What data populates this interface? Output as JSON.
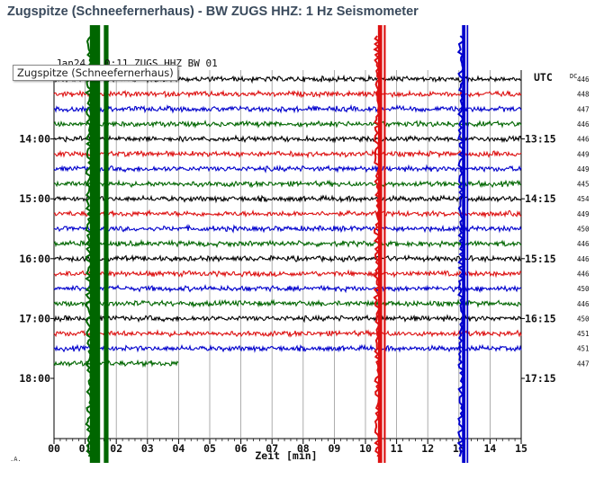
{
  "window": {
    "title": "Zugspitze (Schneefernerhaus) - BW ZUGS HHZ: 1 Hz Seismometer",
    "tooltip": "Zugspitze (Schneefernerhaus)"
  },
  "chart_data": {
    "type": "line",
    "header_date": "Jan24",
    "header_time": "0:11",
    "header_stream": "ZUGS HHZ BW 01",
    "timezone": "UTC",
    "dc_label": "DC",
    "xlabel": "Zeit [min]",
    "x_ticks": [
      "00",
      "01",
      "02",
      "03",
      "04",
      "05",
      "06",
      "07",
      "08",
      "09",
      "10",
      "11",
      "12",
      "13",
      "14",
      "15"
    ],
    "xlim": [
      0,
      15
    ],
    "left_time_labels": [
      {
        "label": "14:00",
        "trace": 4
      },
      {
        "label": "15:00",
        "trace": 8
      },
      {
        "label": "16:00",
        "trace": 12
      },
      {
        "label": "17:00",
        "trace": 16
      },
      {
        "label": "18:00",
        "trace": 20
      }
    ],
    "right_time_labels": [
      {
        "label": "13:15",
        "trace": 4
      },
      {
        "label": "14:15",
        "trace": 8
      },
      {
        "label": "15:15",
        "trace": 12
      },
      {
        "label": "16:15",
        "trace": 16
      },
      {
        "label": "17:15",
        "trace": 20
      }
    ],
    "trace_colors": [
      "#000000",
      "#dd1111",
      "#0000cc",
      "#006600"
    ],
    "dc_offsets": [
      446,
      448,
      447,
      446,
      446,
      449,
      449,
      445,
      454,
      449,
      450,
      446,
      446,
      446,
      450,
      446,
      450,
      451,
      451,
      447
    ],
    "traces_count": 20,
    "last_trace_end_min": 4.0,
    "events": [
      {
        "start_min": 1.15,
        "end_min": 1.75,
        "color": "#006600"
      },
      {
        "start_min": 10.4,
        "end_min": 10.65,
        "color": "#dd1111"
      },
      {
        "start_min": 13.1,
        "end_min": 13.3,
        "color": "#0000cc"
      }
    ],
    "grid": true
  }
}
